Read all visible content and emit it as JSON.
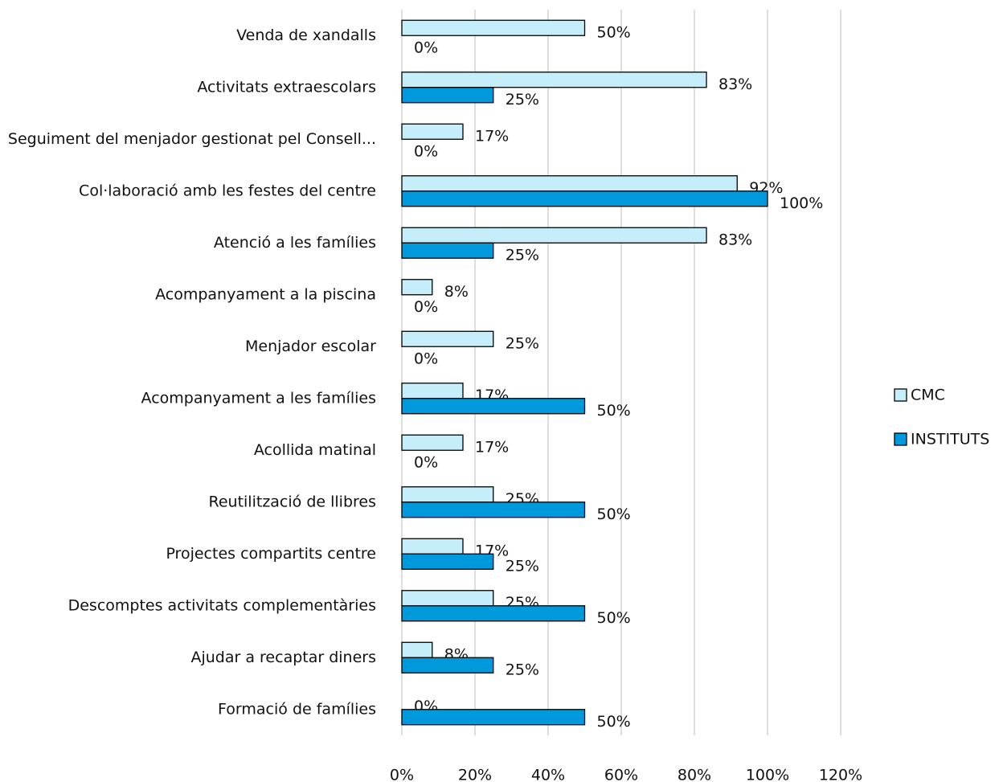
{
  "chart_data": {
    "type": "hbar",
    "categories": [
      "Venda de xandalls",
      "Activitats extraescolars",
      "Seguiment del menjador gestionat pel Consell...",
      "Col·laboració amb les festes del centre",
      "Atenció a les famílies",
      "Acompanyament a la piscina",
      "Menjador escolar",
      "Acompanyament a les famílies",
      "Acollida matinal",
      "Reutilització de llibres",
      "Projectes compartits centre",
      "Descomptes activitats complementàries",
      "Ajudar a recaptar diners",
      "Formació de famílies"
    ],
    "series": [
      {
        "name": "CMC",
        "color": "#c6eefa",
        "values": [
          50,
          83.3,
          16.7,
          91.7,
          83.3,
          8.3,
          25,
          16.7,
          16.7,
          25,
          16.7,
          25,
          8.3,
          0
        ],
        "value_labels": [
          "50%",
          "83%",
          "17%",
          "92%",
          "83%",
          "8%",
          "25%",
          "17%",
          "17%",
          "25%",
          "17%",
          "25%",
          "8%",
          "0%"
        ]
      },
      {
        "name": "INSTITUTS",
        "color": "#0099dc",
        "values": [
          0,
          25,
          0,
          100,
          25,
          0,
          0,
          50,
          0,
          50,
          25,
          50,
          25,
          50
        ],
        "value_labels": [
          "0%",
          "25%",
          "0%",
          "100%",
          "25%",
          "0%",
          "0%",
          "50%",
          "0%",
          "50%",
          "25%",
          "50%",
          "25%",
          "50%"
        ]
      }
    ],
    "xlim": [
      0,
      120
    ],
    "xticks": [
      {
        "value": 0,
        "label": "0%"
      },
      {
        "value": 20,
        "label": "20%"
      },
      {
        "value": 40,
        "label": "40%"
      },
      {
        "value": 60,
        "label": "60%"
      },
      {
        "value": 80,
        "label": "80%"
      },
      {
        "value": 100,
        "label": "100%"
      },
      {
        "value": 120,
        "label": "120%"
      }
    ],
    "grid": true,
    "legend": "right"
  }
}
